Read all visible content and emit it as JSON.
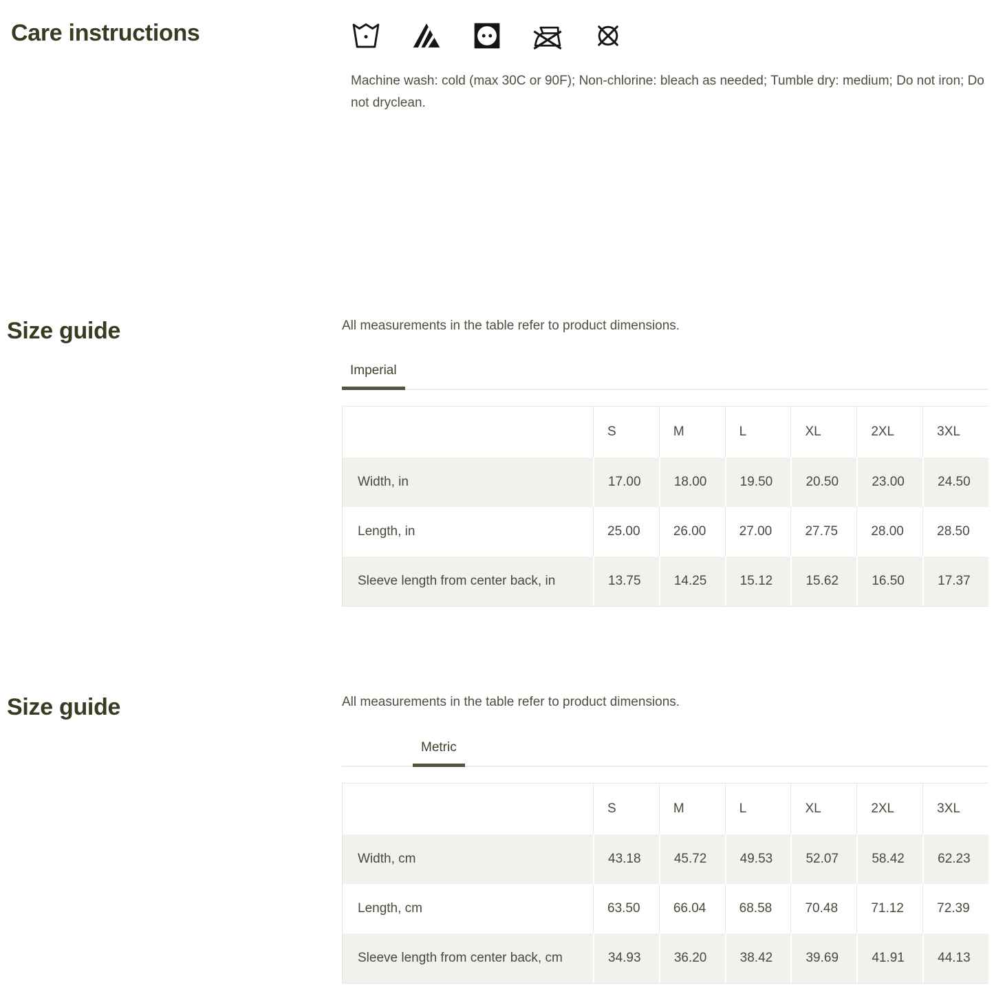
{
  "colors": {
    "heading": "#3a3a22",
    "body_text": "#4e4e40",
    "tab_underline": "#54543f",
    "table_stripe": "#f2f1eb",
    "table_border": "#e6e6e1"
  },
  "care_instructions": {
    "title": "Care instructions",
    "icons": [
      "machine-wash-cold-icon",
      "non-chlorine-bleach-icon",
      "tumble-dry-medium-icon",
      "do-not-iron-icon",
      "do-not-dryclean-icon"
    ],
    "text": "Machine wash: cold (max 30C or 90F); Non-chlorine: bleach as needed; Tumble dry: medium; Do not iron; Do not dryclean."
  },
  "size_guide_imperial": {
    "title": "Size guide",
    "note": "All measurements in the table refer to product dimensions.",
    "tab_label": "Imperial",
    "table": {
      "columns": [
        "S",
        "M",
        "L",
        "XL",
        "2XL",
        "3XL"
      ],
      "rows": [
        {
          "label": "Width, in",
          "values": [
            "17.00",
            "18.00",
            "19.50",
            "20.50",
            "23.00",
            "24.50"
          ]
        },
        {
          "label": "Length, in",
          "values": [
            "25.00",
            "26.00",
            "27.00",
            "27.75",
            "28.00",
            "28.50"
          ]
        },
        {
          "label": "Sleeve length from center back, in",
          "values": [
            "13.75",
            "14.25",
            "15.12",
            "15.62",
            "16.50",
            "17.37"
          ]
        }
      ]
    }
  },
  "size_guide_metric": {
    "title": "Size guide",
    "note": "All measurements in the table refer to product dimensions.",
    "tab_label": "Metric",
    "table": {
      "columns": [
        "S",
        "M",
        "L",
        "XL",
        "2XL",
        "3XL"
      ],
      "rows": [
        {
          "label": "Width, cm",
          "values": [
            "43.18",
            "45.72",
            "49.53",
            "52.07",
            "58.42",
            "62.23"
          ]
        },
        {
          "label": "Length, cm",
          "values": [
            "63.50",
            "66.04",
            "68.58",
            "70.48",
            "71.12",
            "72.39"
          ]
        },
        {
          "label": "Sleeve length from center back, cm",
          "values": [
            "34.93",
            "36.20",
            "38.42",
            "39.69",
            "41.91",
            "44.13"
          ]
        }
      ]
    }
  }
}
